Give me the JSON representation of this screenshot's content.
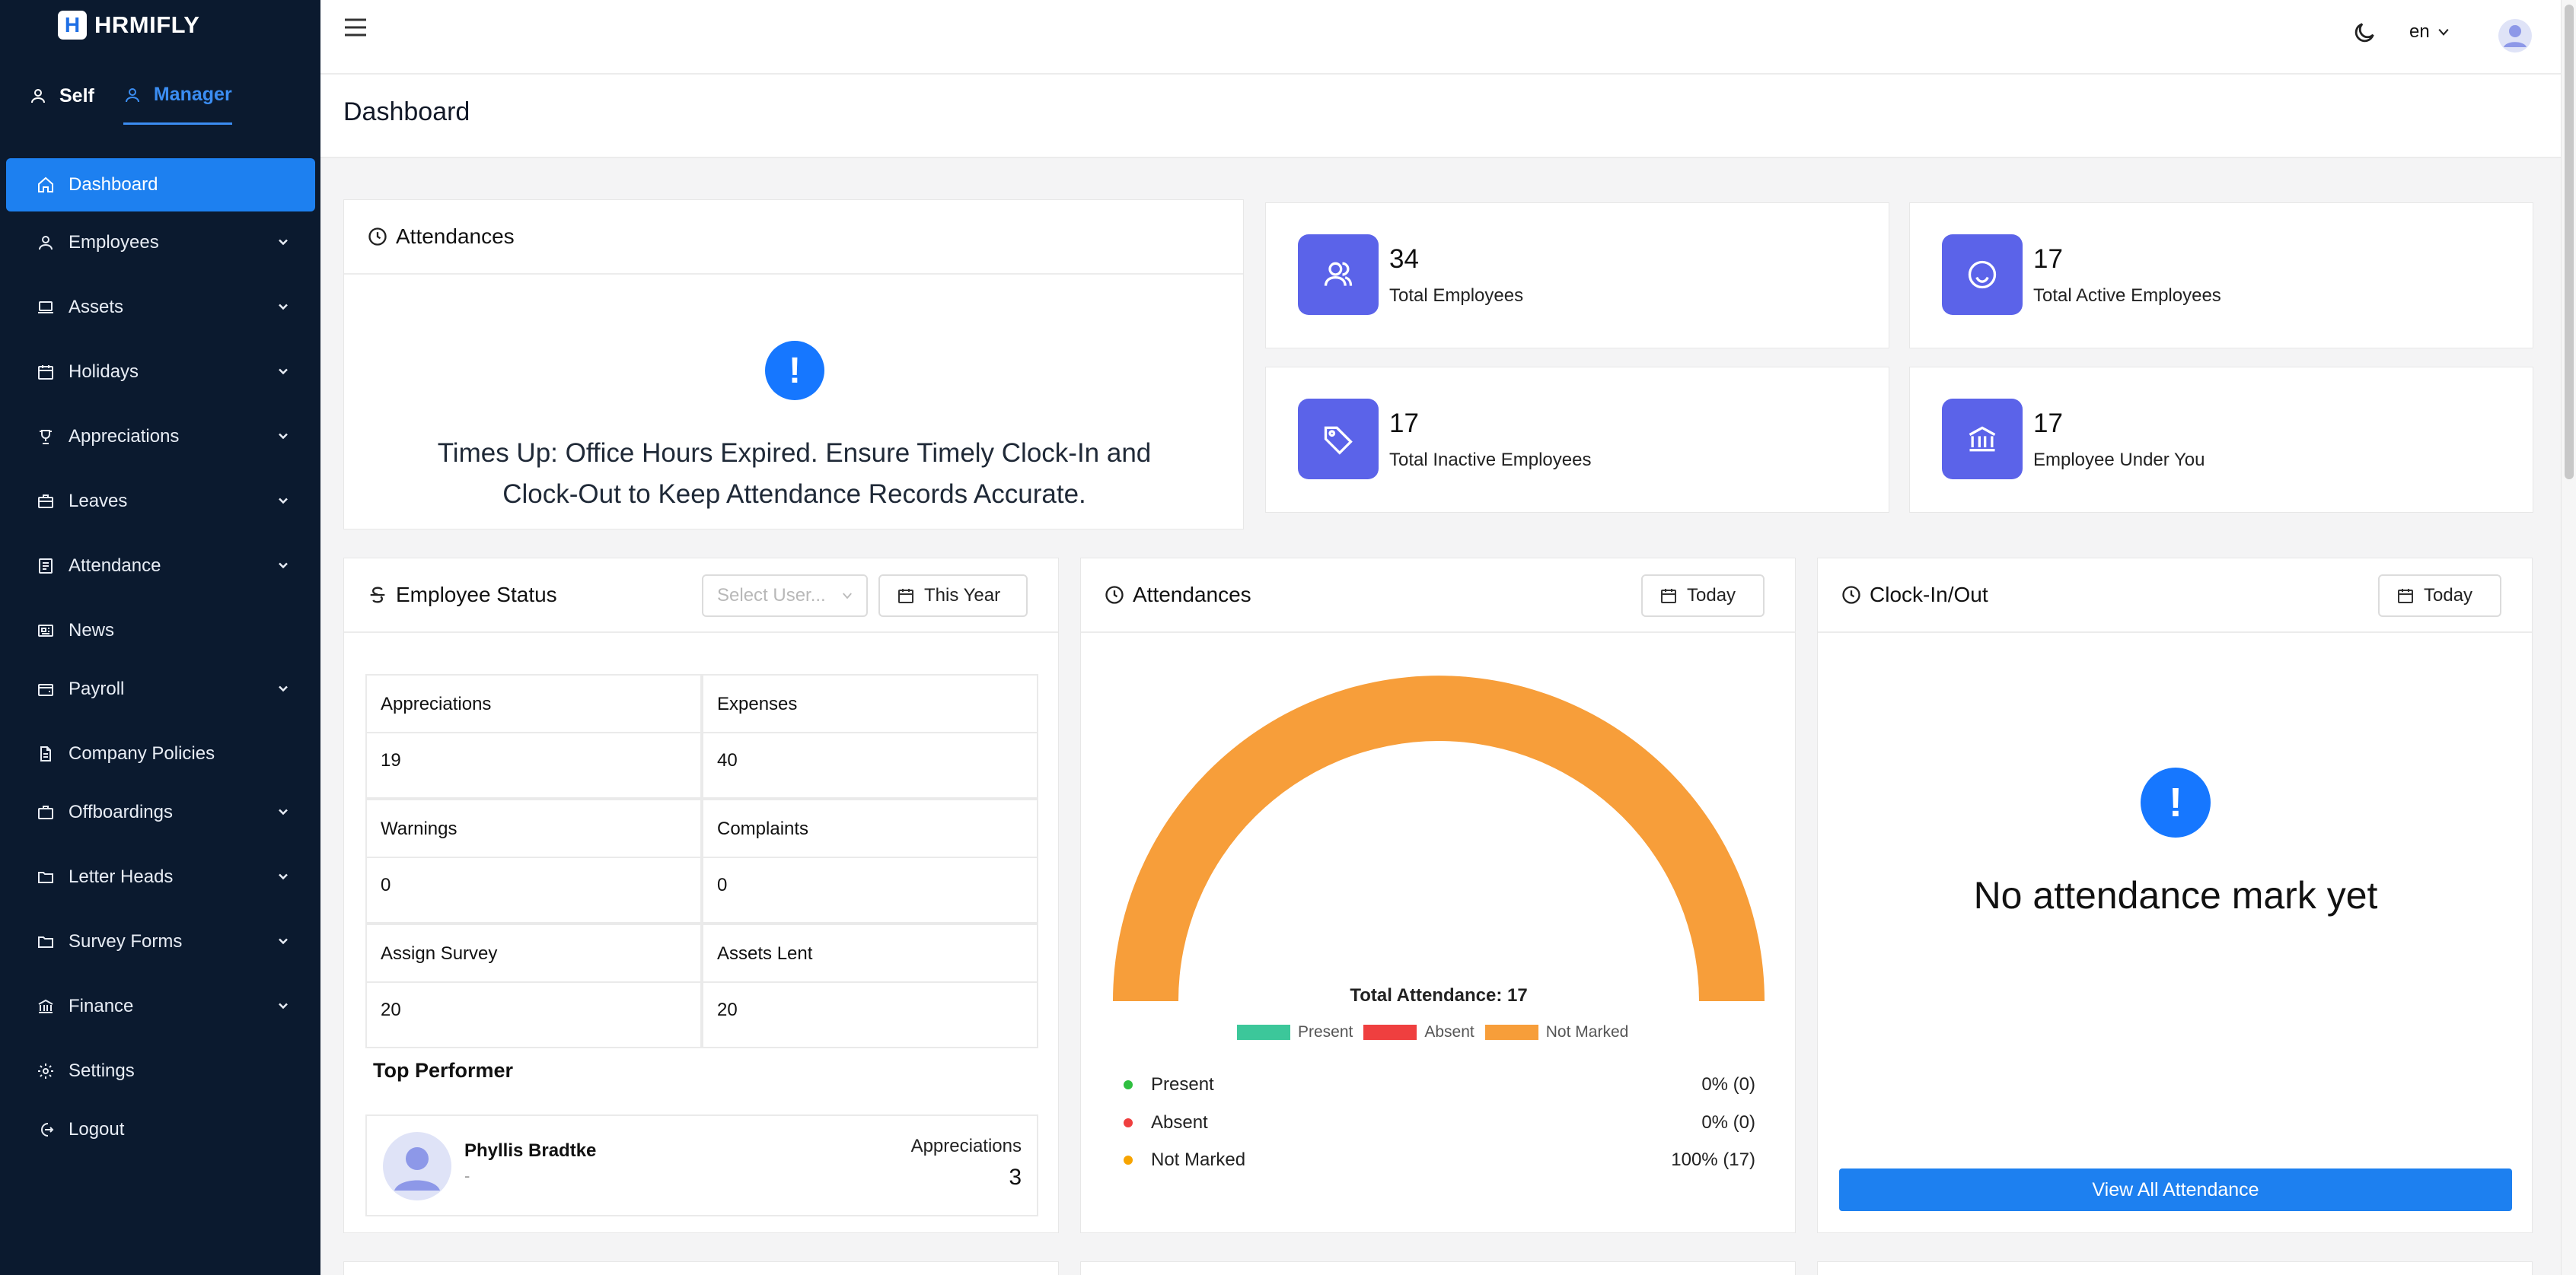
{
  "app": {
    "logo_letter": "H",
    "logo_text": "HRMIFLY"
  },
  "roles": {
    "self": "Self",
    "manager": "Manager"
  },
  "sidebar": {
    "items": [
      {
        "label": "Dashboard"
      },
      {
        "label": "Employees"
      },
      {
        "label": "Assets"
      },
      {
        "label": "Holidays"
      },
      {
        "label": "Appreciations"
      },
      {
        "label": "Leaves"
      },
      {
        "label": "Attendance"
      },
      {
        "label": "News"
      },
      {
        "label": "Payroll"
      },
      {
        "label": "Company Policies"
      },
      {
        "label": "Offboardings"
      },
      {
        "label": "Letter Heads"
      },
      {
        "label": "Survey Forms"
      },
      {
        "label": "Finance"
      },
      {
        "label": "Settings"
      },
      {
        "label": "Logout"
      }
    ]
  },
  "header": {
    "language": "en",
    "page_title": "Dashboard"
  },
  "attendance_alert": {
    "title": "Attendances",
    "message": "Times Up: Office Hours Expired. Ensure Timely Clock-In and Clock-Out to Keep Attendance Records Accurate."
  },
  "stats": [
    {
      "value": "34",
      "label": "Total Employees",
      "icon": "users-icon"
    },
    {
      "value": "17",
      "label": "Total Active Employees",
      "icon": "smile-icon"
    },
    {
      "value": "17",
      "label": "Total Inactive Employees",
      "icon": "tag-icon"
    },
    {
      "value": "17",
      "label": "Employee Under You",
      "icon": "bank-icon"
    }
  ],
  "employee_status": {
    "title": "Employee Status",
    "select_placeholder": "Select User...",
    "period": "This Year",
    "cells": [
      {
        "label": "Appreciations",
        "value": "19"
      },
      {
        "label": "Expenses",
        "value": "40"
      },
      {
        "label": "Warnings",
        "value": "0"
      },
      {
        "label": "Complaints",
        "value": "0"
      },
      {
        "label": "Assign Survey",
        "value": "20"
      },
      {
        "label": "Assets Lent",
        "value": "20"
      }
    ],
    "top_performer": {
      "heading": "Top Performer",
      "name": "Phyllis Bradtke",
      "sub": "-",
      "metric_label": "Appreciations",
      "metric_value": "3"
    }
  },
  "attendance_chart_card": {
    "title": "Attendances",
    "period": "Today",
    "center_text": "Total Attendance: 17",
    "rows": [
      {
        "label": "Present",
        "value": "0% (0)"
      },
      {
        "label": "Absent",
        "value": "0% (0)"
      },
      {
        "label": "Not Marked",
        "value": "100% (17)"
      }
    ]
  },
  "chart_data": {
    "type": "pie",
    "title": "",
    "categories": [
      "Present",
      "Absent",
      "Not Marked"
    ],
    "values": [
      0,
      0,
      17
    ],
    "colors": [
      "#3cc79a",
      "#ef3f3f",
      "#f79e3a"
    ],
    "legend": "bottom",
    "subtype": "semi-donut"
  },
  "clock_card": {
    "title": "Clock-In/Out",
    "period": "Today",
    "message": "No attendance mark yet",
    "button": "View All Attendance"
  },
  "colors": {
    "sidebar_bg": "#0b1a2f",
    "accent": "#1d80f0",
    "stat_icon_bg": "#5b63e9",
    "present": "#3cc79a",
    "absent": "#ef3f3f",
    "not_marked": "#f79e3a"
  }
}
